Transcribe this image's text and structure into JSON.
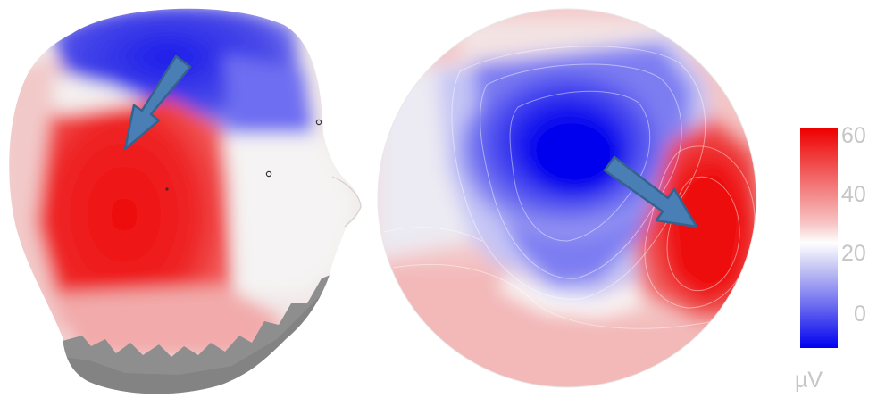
{
  "colorbar": {
    "ticks": [
      "60",
      "40",
      "20",
      "0"
    ],
    "unit": "µV",
    "colors": {
      "max": "#ee0000",
      "mid": "#ffffff",
      "min": "#0000f0"
    }
  },
  "head_view": {
    "arrow_color": "#4a7fb5",
    "scalp_gray": "#8e8e8e"
  },
  "topomap": {
    "arrow_color": "#4a7fb5"
  }
}
